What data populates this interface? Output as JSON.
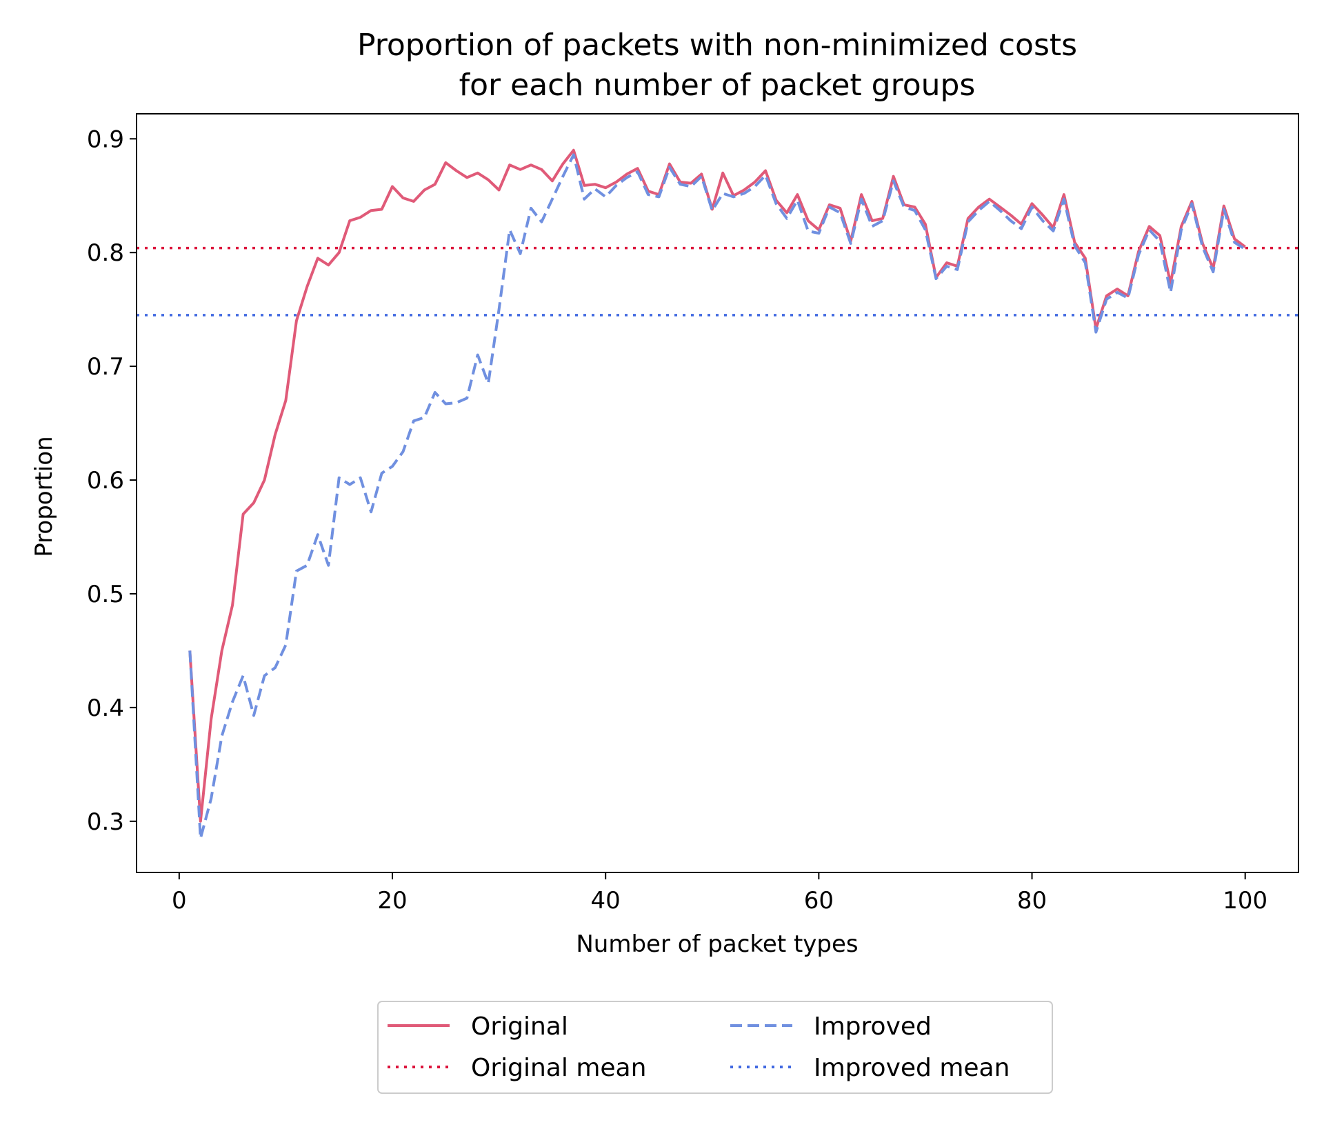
{
  "chart_data": {
    "type": "line",
    "title": [
      "Proportion of packets with non-minimized costs",
      "for each number of packet groups"
    ],
    "xlabel": "Number of packet types",
    "ylabel": "Proportion",
    "xlim": [
      -4,
      105
    ],
    "ylim": [
      0.255,
      0.922
    ],
    "xticks": [
      0,
      20,
      40,
      60,
      80,
      100
    ],
    "xtick_labels": [
      "0",
      "20",
      "40",
      "60",
      "80",
      "100"
    ],
    "yticks": [
      0.3,
      0.4,
      0.5,
      0.6,
      0.7,
      0.8,
      0.9
    ],
    "ytick_labels": [
      "0.3",
      "0.4",
      "0.5",
      "0.6",
      "0.7",
      "0.8",
      "0.9"
    ],
    "grid": false,
    "legend_position": "bottom-center-below",
    "x": [
      1,
      2,
      3,
      4,
      5,
      6,
      7,
      8,
      9,
      10,
      11,
      12,
      13,
      14,
      15,
      16,
      17,
      18,
      19,
      20,
      21,
      22,
      23,
      24,
      25,
      26,
      27,
      28,
      29,
      30,
      31,
      32,
      33,
      34,
      35,
      36,
      37,
      38,
      39,
      40,
      41,
      42,
      43,
      44,
      45,
      46,
      47,
      48,
      49,
      50,
      51,
      52,
      53,
      54,
      55,
      56,
      57,
      58,
      59,
      60,
      61,
      62,
      63,
      64,
      65,
      66,
      67,
      68,
      69,
      70,
      71,
      72,
      73,
      74,
      75,
      76,
      77,
      78,
      79,
      80,
      81,
      82,
      83,
      84,
      85,
      86,
      87,
      88,
      89,
      90,
      91,
      92,
      93,
      94,
      95,
      96,
      97,
      98,
      99,
      100
    ],
    "series": [
      {
        "name": "Original",
        "style": "solid",
        "color": "#e05a78",
        "values": [
          0.45,
          0.3,
          0.39,
          0.45,
          0.49,
          0.57,
          0.58,
          0.6,
          0.64,
          0.67,
          0.74,
          0.77,
          0.795,
          0.789,
          0.8,
          0.828,
          0.831,
          0.837,
          0.838,
          0.858,
          0.848,
          0.845,
          0.855,
          0.86,
          0.879,
          0.872,
          0.866,
          0.87,
          0.864,
          0.855,
          0.877,
          0.873,
          0.877,
          0.873,
          0.863,
          0.878,
          0.89,
          0.859,
          0.86,
          0.857,
          0.862,
          0.869,
          0.874,
          0.854,
          0.851,
          0.878,
          0.862,
          0.861,
          0.869,
          0.838,
          0.87,
          0.85,
          0.855,
          0.862,
          0.872,
          0.846,
          0.835,
          0.851,
          0.828,
          0.82,
          0.842,
          0.839,
          0.81,
          0.851,
          0.828,
          0.83,
          0.867,
          0.842,
          0.84,
          0.825,
          0.778,
          0.791,
          0.788,
          0.83,
          0.84,
          0.847,
          0.84,
          0.833,
          0.825,
          0.843,
          0.833,
          0.822,
          0.851,
          0.809,
          0.795,
          0.733,
          0.762,
          0.768,
          0.762,
          0.801,
          0.823,
          0.815,
          0.773,
          0.823,
          0.845,
          0.808,
          0.786,
          0.841,
          0.812,
          0.805
        ]
      },
      {
        "name": "Improved",
        "style": "dashed",
        "color": "#7090e0",
        "values": [
          0.45,
          0.285,
          0.32,
          0.375,
          0.405,
          0.428,
          0.393,
          0.428,
          0.435,
          0.455,
          0.52,
          0.525,
          0.552,
          0.525,
          0.602,
          0.596,
          0.602,
          0.572,
          0.606,
          0.612,
          0.625,
          0.652,
          0.655,
          0.677,
          0.667,
          0.668,
          0.672,
          0.71,
          0.685,
          0.75,
          0.82,
          0.799,
          0.839,
          0.827,
          0.847,
          0.867,
          0.886,
          0.847,
          0.856,
          0.849,
          0.859,
          0.866,
          0.871,
          0.851,
          0.849,
          0.875,
          0.86,
          0.858,
          0.867,
          0.837,
          0.852,
          0.849,
          0.852,
          0.858,
          0.868,
          0.843,
          0.83,
          0.846,
          0.819,
          0.817,
          0.84,
          0.835,
          0.808,
          0.847,
          0.823,
          0.828,
          0.863,
          0.84,
          0.837,
          0.82,
          0.777,
          0.788,
          0.785,
          0.827,
          0.837,
          0.845,
          0.837,
          0.828,
          0.821,
          0.84,
          0.828,
          0.819,
          0.847,
          0.806,
          0.791,
          0.73,
          0.759,
          0.765,
          0.76,
          0.798,
          0.82,
          0.81,
          0.765,
          0.82,
          0.843,
          0.805,
          0.783,
          0.838,
          0.809,
          0.803
        ]
      }
    ],
    "reference_lines": [
      {
        "name": "Original mean",
        "y": 0.804,
        "style": "dotted",
        "color": "#dc143c"
      },
      {
        "name": "Improved mean",
        "y": 0.745,
        "style": "dotted",
        "color": "#4169e1"
      }
    ]
  },
  "legend": {
    "entries": [
      {
        "label": "Original",
        "style": "solid",
        "color": "#e05a78"
      },
      {
        "label": "Improved",
        "style": "dashed",
        "color": "#7090e0"
      },
      {
        "label": "Original mean",
        "style": "dotted",
        "color": "#dc143c"
      },
      {
        "label": "Improved mean",
        "style": "dotted",
        "color": "#4169e1"
      }
    ]
  }
}
